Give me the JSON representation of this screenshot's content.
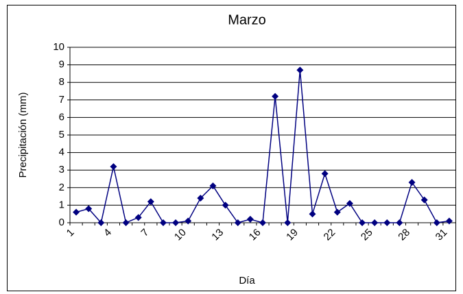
{
  "chart_data": {
    "type": "line",
    "title": "Marzo",
    "x_label": "Día",
    "y_label": "Precipitación (mm)",
    "categories": [
      "1",
      null,
      null,
      "4",
      null,
      null,
      "7",
      null,
      null,
      "10",
      null,
      null,
      "13",
      null,
      null,
      "16",
      null,
      null,
      "19",
      null,
      null,
      "22",
      null,
      null,
      "25",
      null,
      null,
      "28",
      null,
      null,
      "31"
    ],
    "series": [
      {
        "name": "Precipitación",
        "color": "#000080",
        "values": [
          0.6,
          0.8,
          0,
          3.2,
          0,
          0.3,
          1.2,
          0,
          0,
          0.1,
          1.4,
          2.1,
          1.0,
          0,
          0.2,
          0,
          7.2,
          0,
          8.7,
          0.5,
          2.8,
          0.6,
          1.1,
          0,
          0,
          0,
          0,
          2.3,
          1.3,
          0,
          0.1
        ]
      }
    ],
    "ylim": [
      0,
      10
    ],
    "yticks": [
      0,
      1,
      2,
      3,
      4,
      5,
      6,
      7,
      8,
      9,
      10
    ],
    "grid": true
  }
}
